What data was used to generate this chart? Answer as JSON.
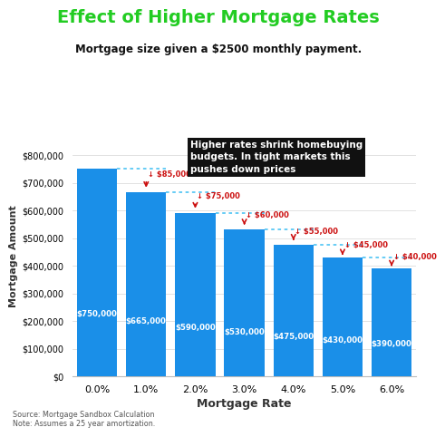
{
  "title": "Effect of Higher Mortgage Rates",
  "subtitle": "Mortgage size given a $2500 monthly payment.",
  "xlabel": "Mortgage Rate",
  "ylabel": "Mortgage Amount",
  "rates": [
    "0.0%",
    "1.0%",
    "2.0%",
    "3.0%",
    "4.0%",
    "5.0%",
    "6.0%"
  ],
  "values": [
    750000,
    665000,
    590000,
    530000,
    475000,
    430000,
    390000
  ],
  "drops": [
    null,
    85000,
    75000,
    60000,
    55000,
    45000,
    40000
  ],
  "bar_color": "#1a8fe8",
  "bar_label_color": "#ffffff",
  "drop_color": "#cc1111",
  "dotted_line_color": "#5bc8f5",
  "annotation_bg": "#111111",
  "annotation_text": "Higher rates shrink homebuying\nbudgets. In tight markets this\npushes down prices",
  "annotation_text_color": "#ffffff",
  "title_color": "#22cc22",
  "subtitle_color": "#111111",
  "bg_color": "#ffffff",
  "source_text": "Source: Mortgage Sandbox Calculation\nNote: Assumes a 25 year amortization.",
  "ylim": [
    0,
    870000
  ],
  "yticks": [
    0,
    100000,
    200000,
    300000,
    400000,
    500000,
    600000,
    700000,
    800000
  ],
  "ytick_labels": [
    "$0",
    "$100,000",
    "$200,000",
    "$300,000",
    "$400,000",
    "$500,000",
    "$600,000",
    "$700,000",
    "$800,000"
  ]
}
